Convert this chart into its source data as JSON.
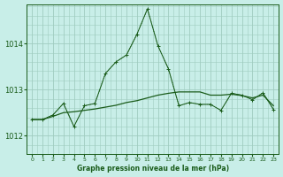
{
  "title": "Graphe pression niveau de la mer (hPa)",
  "background_color": "#c8eee8",
  "grid_color": "#a0ccc0",
  "line_color": "#1a5c1a",
  "xlim": [
    -0.5,
    23.5
  ],
  "ylim": [
    1011.6,
    1014.85
  ],
  "yticks": [
    1012,
    1013,
    1014
  ],
  "xticks": [
    0,
    1,
    2,
    3,
    4,
    5,
    6,
    7,
    8,
    9,
    10,
    11,
    12,
    13,
    14,
    15,
    16,
    17,
    18,
    19,
    20,
    21,
    22,
    23
  ],
  "x_minor_ticks": true,
  "dotted_series": [
    1012.35,
    1012.35,
    1012.45,
    1012.7,
    1012.2,
    1012.65,
    1012.7,
    1013.35,
    1013.6,
    1013.75,
    1014.2,
    1014.75,
    1013.95,
    1013.45,
    1012.65,
    1012.72,
    1012.68,
    1012.68,
    1012.55,
    1012.92,
    1012.88,
    1012.78,
    1012.93,
    1012.57
  ],
  "solid_series": [
    1012.35,
    1012.35,
    1012.45,
    1012.7,
    1012.2,
    1012.65,
    1012.7,
    1013.35,
    1013.6,
    1013.75,
    1014.2,
    1014.75,
    1013.95,
    1013.45,
    1012.65,
    1012.72,
    1012.68,
    1012.68,
    1012.55,
    1012.92,
    1012.88,
    1012.78,
    1012.93,
    1012.57
  ],
  "trend_series": [
    1012.35,
    1012.35,
    1012.42,
    1012.5,
    1012.52,
    1012.55,
    1012.58,
    1012.62,
    1012.66,
    1012.72,
    1012.76,
    1012.82,
    1012.88,
    1012.92,
    1012.95,
    1012.95,
    1012.95,
    1012.88,
    1012.88,
    1012.9,
    1012.87,
    1012.82,
    1012.88,
    1012.65
  ]
}
